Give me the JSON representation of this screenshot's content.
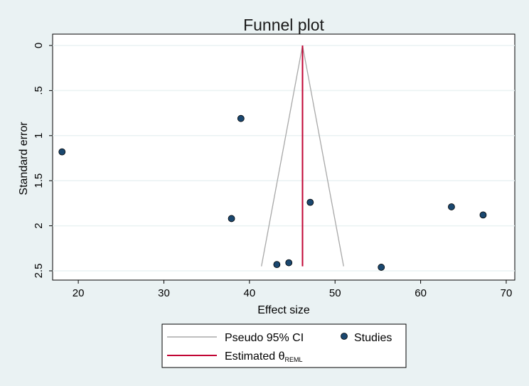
{
  "chart_data": {
    "type": "scatter",
    "title": "Funnel plot",
    "xlabel": "Effect size",
    "ylabel": "Standard error",
    "xlim": [
      17,
      71
    ],
    "ylim": [
      0,
      2.55
    ],
    "y_reversed": true,
    "x_ticks": [
      20,
      30,
      40,
      50,
      60,
      70
    ],
    "x_tick_labels": [
      "20",
      "30",
      "40",
      "50",
      "60",
      "70"
    ],
    "y_ticks": [
      0,
      0.5,
      1,
      1.5,
      2,
      2.5
    ],
    "y_tick_labels": [
      "0",
      ".5",
      "1",
      "1.5",
      "2",
      "2.5"
    ],
    "grid": true,
    "estimate": 46.2,
    "pseudo_ci_max_se": 2.45,
    "series": [
      {
        "name": "Studies",
        "x": [
          18.1,
          39.0,
          47.1,
          37.9,
          43.2,
          44.6,
          55.4,
          63.6,
          67.3
        ],
        "y": [
          1.18,
          0.81,
          1.74,
          1.92,
          2.43,
          2.41,
          2.46,
          1.79,
          1.88
        ]
      }
    ],
    "legend": {
      "placement": "bottom",
      "items": [
        {
          "label": "Pseudo 95% CI",
          "style": "line",
          "color": "#a8a8a8"
        },
        {
          "label": "Studies",
          "style": "marker",
          "color": "#1a476f"
        },
        {
          "label": "Estimated θ",
          "subscript": "REML",
          "style": "line",
          "color": "#c10534"
        }
      ]
    },
    "colors": {
      "background": "#eaf2f3",
      "plot_area": "#ffffff",
      "grid": "#eaf2f3",
      "ci_line": "#a8a8a8",
      "estimate_line": "#c10534",
      "marker_fill": "#1a476f",
      "marker_stroke": "#000000"
    }
  }
}
